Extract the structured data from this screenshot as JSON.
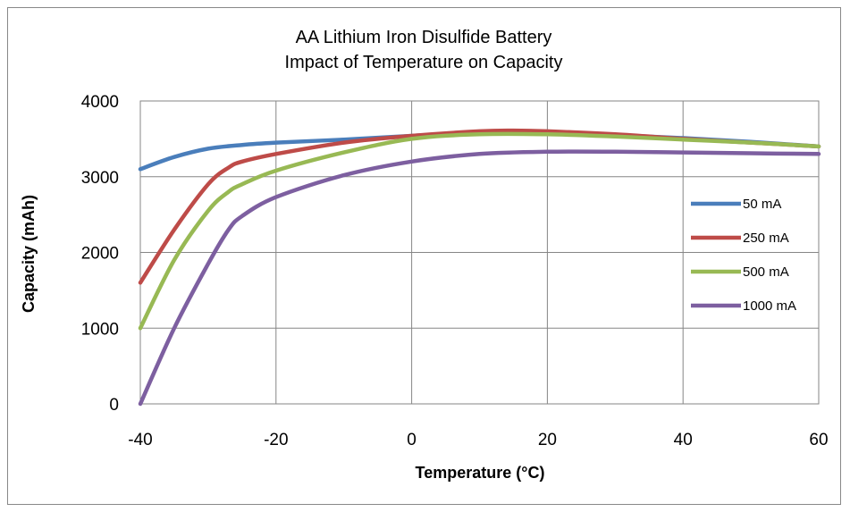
{
  "chart_data": {
    "type": "line",
    "title": [
      "AA Lithium Iron Disulfide Battery",
      "Impact of Temperature on Capacity"
    ],
    "xlabel": "Temperature (°C)",
    "ylabel": "Capacity (mAh)",
    "xlim": [
      -40,
      60
    ],
    "ylim": [
      0,
      4000
    ],
    "x_ticks": [
      "-40",
      "-20",
      "0",
      "20",
      "40",
      "60"
    ],
    "y_ticks": [
      "0",
      "1000",
      "2000",
      "3000",
      "4000"
    ],
    "grid": true,
    "legend_position": "right",
    "series": [
      {
        "name": "50 mA",
        "color": "#4a7ebb",
        "x": [
          -40,
          -35,
          -30,
          -25,
          -20,
          -10,
          0,
          10,
          20,
          30,
          40,
          50,
          60
        ],
        "y": [
          3100,
          3260,
          3370,
          3420,
          3450,
          3490,
          3540,
          3580,
          3580,
          3550,
          3510,
          3460,
          3400
        ]
      },
      {
        "name": "250 mA",
        "color": "#be4b48",
        "x": [
          -40,
          -35,
          -30,
          -27,
          -25,
          -20,
          -10,
          0,
          10,
          15,
          20,
          30,
          40,
          50,
          60
        ],
        "y": [
          1600,
          2300,
          2900,
          3120,
          3200,
          3300,
          3450,
          3540,
          3600,
          3610,
          3600,
          3560,
          3500,
          3450,
          3400
        ]
      },
      {
        "name": "500 mA",
        "color": "#98b954",
        "x": [
          -40,
          -35,
          -30,
          -27,
          -25,
          -20,
          -10,
          0,
          10,
          20,
          30,
          40,
          50,
          60
        ],
        "y": [
          1000,
          1900,
          2550,
          2800,
          2900,
          3080,
          3320,
          3500,
          3560,
          3560,
          3530,
          3490,
          3450,
          3400
        ]
      },
      {
        "name": "1000 mA",
        "color": "#7d5fa0",
        "x": [
          -40,
          -35,
          -30,
          -27,
          -25,
          -20,
          -10,
          0,
          10,
          20,
          30,
          40,
          50,
          60
        ],
        "y": [
          0,
          1000,
          1850,
          2300,
          2480,
          2730,
          3020,
          3200,
          3300,
          3330,
          3330,
          3320,
          3310,
          3300
        ]
      }
    ]
  }
}
